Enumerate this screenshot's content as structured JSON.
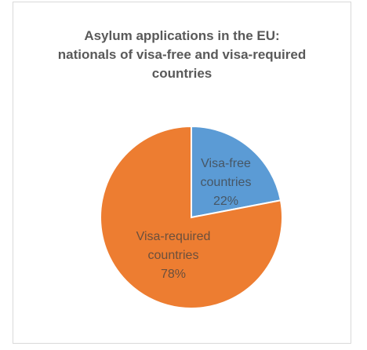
{
  "chart_data": {
    "type": "pie",
    "title_lines": [
      "Asylum applications in the EU:",
      "nationals of visa-free and visa-required",
      "countries"
    ],
    "slices": [
      {
        "label_lines": [
          "Visa-free",
          "countries"
        ],
        "value": 22,
        "value_label": "22%",
        "color": "#5b9bd5"
      },
      {
        "label_lines": [
          "Visa-required",
          "countries"
        ],
        "value": 78,
        "value_label": "78%",
        "color": "#ed7d31"
      }
    ],
    "start_angle_deg": 0,
    "direction": "clockwise",
    "legend": "none",
    "slice_border_color": "#ffffff"
  }
}
